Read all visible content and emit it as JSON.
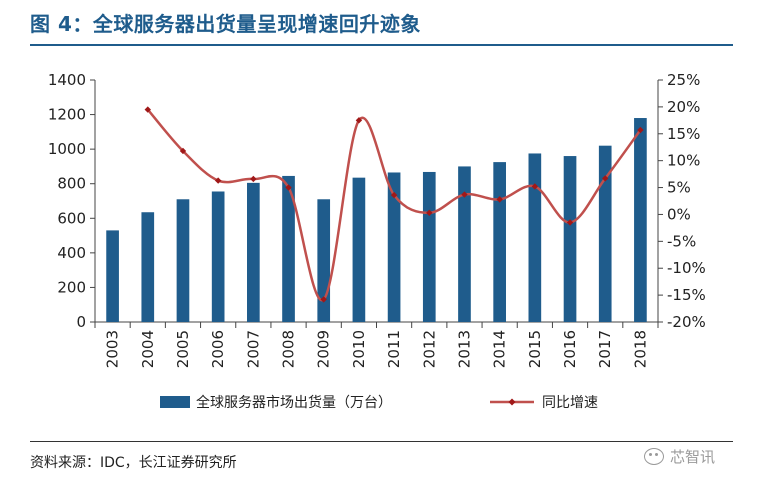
{
  "title": "图 4：全球服务器出货量呈现增速回升迹象",
  "source": "资料来源：IDC，长江证券研究所",
  "watermark": "芯智讯",
  "chart_data": {
    "type": "bar",
    "title": "图 4：全球服务器出货量呈现增速回升迹象",
    "categories": [
      "2003",
      "2004",
      "2005",
      "2006",
      "2007",
      "2008",
      "2009",
      "2010",
      "2011",
      "2012",
      "2013",
      "2014",
      "2015",
      "2016",
      "2017",
      "2018"
    ],
    "series": [
      {
        "name": "全球服务器市场出货量（万台）",
        "type": "bar",
        "axis": "left",
        "color": "#1f5c8c",
        "values": [
          530,
          635,
          710,
          755,
          805,
          845,
          710,
          835,
          865,
          868,
          900,
          925,
          975,
          960,
          1020,
          1180
        ]
      },
      {
        "name": "同比增速",
        "type": "line",
        "axis": "right",
        "color": "#c0504d",
        "values": [
          null,
          19.5,
          11.8,
          6.3,
          6.6,
          5.0,
          -15.8,
          17.5,
          3.6,
          0.3,
          3.7,
          2.8,
          5.2,
          -1.5,
          6.7,
          15.7
        ]
      }
    ],
    "ylim": [
      0,
      1400
    ],
    "yticks": [
      "0",
      "200",
      "400",
      "600",
      "800",
      "1000",
      "1200",
      "1400"
    ],
    "y2lim": [
      -20,
      25
    ],
    "y2ticks": [
      "-20%",
      "-15%",
      "-10%",
      "-5%",
      "0%",
      "5%",
      "10%",
      "15%",
      "20%",
      "25%"
    ],
    "legend": "bottom",
    "grid": false
  }
}
